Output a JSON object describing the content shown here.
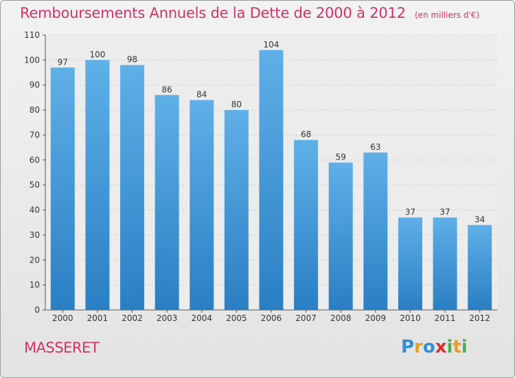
{
  "title": "Remboursements Annuels de la Dette de 2000 à 2012",
  "subtitle": "(en milliers d'€)",
  "commune": "MASSERET",
  "logo": {
    "letters": [
      "P",
      "r",
      "o",
      "x",
      "i",
      "t",
      "i"
    ],
    "colors": [
      "#2f8fd8",
      "#e8a020",
      "#2f8fd8",
      "#d9302c",
      "#4caf50",
      "#e8a020",
      "#4caf50"
    ]
  },
  "colors": {
    "bar_top": "#5fb0e8",
    "bar_bottom": "#2a7fc4",
    "accent": "#cc3366"
  },
  "chart_data": {
    "type": "bar",
    "categories": [
      "2000",
      "2001",
      "2002",
      "2003",
      "2004",
      "2005",
      "2006",
      "2007",
      "2008",
      "2009",
      "2010",
      "2011",
      "2012"
    ],
    "values": [
      97,
      100,
      98,
      86,
      84,
      80,
      104,
      68,
      59,
      63,
      37,
      37,
      34
    ],
    "ylim": [
      0,
      110
    ],
    "yticks": [
      0,
      10,
      20,
      30,
      40,
      50,
      60,
      70,
      80,
      90,
      100,
      110
    ],
    "grid": true,
    "xlabel": "",
    "ylabel": ""
  }
}
